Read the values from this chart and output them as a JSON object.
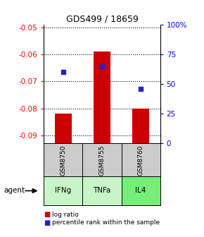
{
  "title": "GDS499 / 18659",
  "samples": [
    "GSM8750",
    "GSM8755",
    "GSM8760"
  ],
  "agents": [
    "IFNg",
    "TNFa",
    "IL4"
  ],
  "log_ratios": [
    -0.082,
    -0.059,
    -0.08
  ],
  "percentile_ranks": [
    60,
    65,
    46
  ],
  "ylim_left": [
    -0.093,
    -0.049
  ],
  "ylim_right": [
    0,
    100
  ],
  "left_ticks": [
    -0.05,
    -0.06,
    -0.07,
    -0.08,
    -0.09
  ],
  "right_ticks": [
    0,
    25,
    50,
    75,
    100
  ],
  "right_tick_labels": [
    "0",
    "25",
    "50",
    "75",
    "100%"
  ],
  "bar_color": "#cc0000",
  "dot_color": "#2222cc",
  "agent_colors": [
    "#c8f5c8",
    "#c8f5c8",
    "#77ee77"
  ],
  "gsm_bg_color": "#cccccc",
  "legend_bar_label": "log ratio",
  "legend_dot_label": "percentile rank within the sample",
  "bar_width": 0.45
}
